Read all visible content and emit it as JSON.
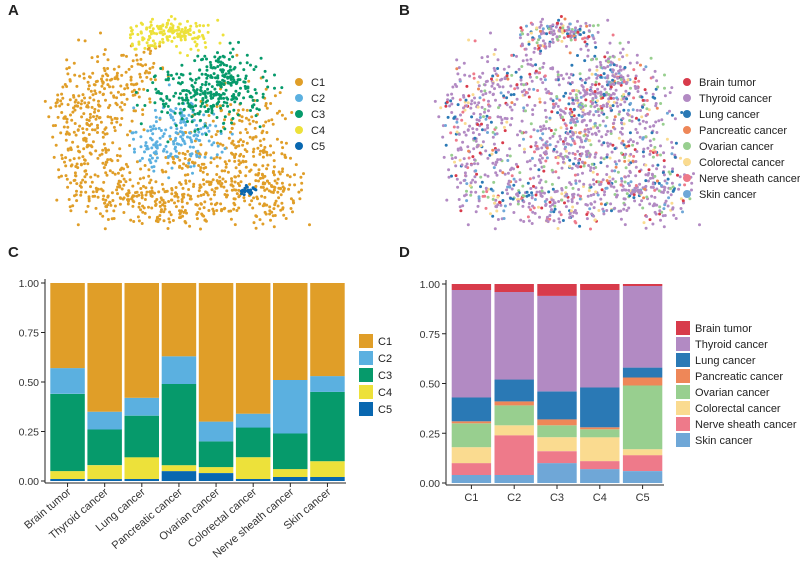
{
  "panels": {
    "a": {
      "letter": "A"
    },
    "b": {
      "letter": "B"
    },
    "c": {
      "letter": "C"
    },
    "d": {
      "letter": "D"
    }
  },
  "colors": {
    "clusters": [
      "#E09E28",
      "#5BB0E0",
      "#069A6B",
      "#EDE13A",
      "#0867B0"
    ],
    "cancers": [
      "#D83B4B",
      "#B28AC3",
      "#2A79B5",
      "#EE8758",
      "#98CF8F",
      "#FADB90",
      "#EE7A8A",
      "#6FA7D7"
    ]
  },
  "chart_data": [
    {
      "id": "A",
      "type": "scatter",
      "title": "",
      "description_kind": "umap-clusters",
      "legend": [
        "C1",
        "C2",
        "C3",
        "C4",
        "C5"
      ],
      "legend_position": "right"
    },
    {
      "id": "B",
      "type": "scatter",
      "title": "",
      "description_kind": "umap-cancer-types",
      "legend": [
        "Brain tumor",
        "Thyroid cancer",
        "Lung cancer",
        "Pancreatic cancer",
        "Ovarian cancer",
        "Colorectal cancer",
        "Nerve sheath cancer",
        "Skin cancer"
      ],
      "legend_position": "right"
    },
    {
      "id": "C",
      "type": "bar",
      "stacked": true,
      "categories": [
        "Brain tumor",
        "Thyroid cancer",
        "Lung cancer",
        "Pancreatic cancer",
        "Ovarian cancer",
        "Colorectal cancer",
        "Nerve sheath cancer",
        "Skin cancer"
      ],
      "series": [
        {
          "name": "C5",
          "values": [
            0.01,
            0.01,
            0.01,
            0.05,
            0.04,
            0.01,
            0.02,
            0.02
          ]
        },
        {
          "name": "C4",
          "values": [
            0.04,
            0.07,
            0.11,
            0.03,
            0.03,
            0.11,
            0.04,
            0.08
          ]
        },
        {
          "name": "C3",
          "values": [
            0.39,
            0.18,
            0.21,
            0.41,
            0.13,
            0.15,
            0.18,
            0.35
          ]
        },
        {
          "name": "C2",
          "values": [
            0.13,
            0.09,
            0.09,
            0.14,
            0.1,
            0.07,
            0.27,
            0.08
          ]
        },
        {
          "name": "C1",
          "values": [
            0.43,
            0.65,
            0.58,
            0.37,
            0.7,
            0.66,
            0.49,
            0.47
          ]
        }
      ],
      "yticks": [
        "0.00",
        "0.25",
        "0.50",
        "0.75",
        "1.00"
      ],
      "ylim": [
        0,
        1
      ],
      "xlabel": "",
      "ylabel": "",
      "legend": [
        "C1",
        "C2",
        "C3",
        "C4",
        "C5"
      ],
      "legend_position": "right"
    },
    {
      "id": "D",
      "type": "bar",
      "stacked": true,
      "categories": [
        "C1",
        "C2",
        "C3",
        "C4",
        "C5"
      ],
      "series": [
        {
          "name": "Skin cancer",
          "values": [
            0.04,
            0.04,
            0.1,
            0.07,
            0.06
          ]
        },
        {
          "name": "Nerve sheath cancer",
          "values": [
            0.06,
            0.2,
            0.06,
            0.04,
            0.08
          ]
        },
        {
          "name": "Colorectal cancer",
          "values": [
            0.08,
            0.05,
            0.07,
            0.12,
            0.03
          ]
        },
        {
          "name": "Ovarian cancer",
          "values": [
            0.12,
            0.1,
            0.06,
            0.04,
            0.32
          ]
        },
        {
          "name": "Pancreatic cancer",
          "values": [
            0.01,
            0.02,
            0.03,
            0.01,
            0.04
          ]
        },
        {
          "name": "Lung cancer",
          "values": [
            0.12,
            0.11,
            0.14,
            0.2,
            0.05
          ]
        },
        {
          "name": "Thyroid cancer",
          "values": [
            0.54,
            0.44,
            0.48,
            0.49,
            0.41
          ]
        },
        {
          "name": "Brain tumor",
          "values": [
            0.03,
            0.04,
            0.06,
            0.03,
            0.01
          ]
        }
      ],
      "yticks": [
        "0.00",
        "0.25",
        "0.50",
        "0.75",
        "1.00"
      ],
      "ylim": [
        0,
        1
      ],
      "xlabel": "",
      "ylabel": "",
      "legend": [
        "Brain tumor",
        "Thyroid cancer",
        "Lung cancer",
        "Pancreatic cancer",
        "Ovarian cancer",
        "Colorectal cancer",
        "Nerve sheath cancer",
        "Skin cancer"
      ],
      "legend_position": "right"
    }
  ]
}
